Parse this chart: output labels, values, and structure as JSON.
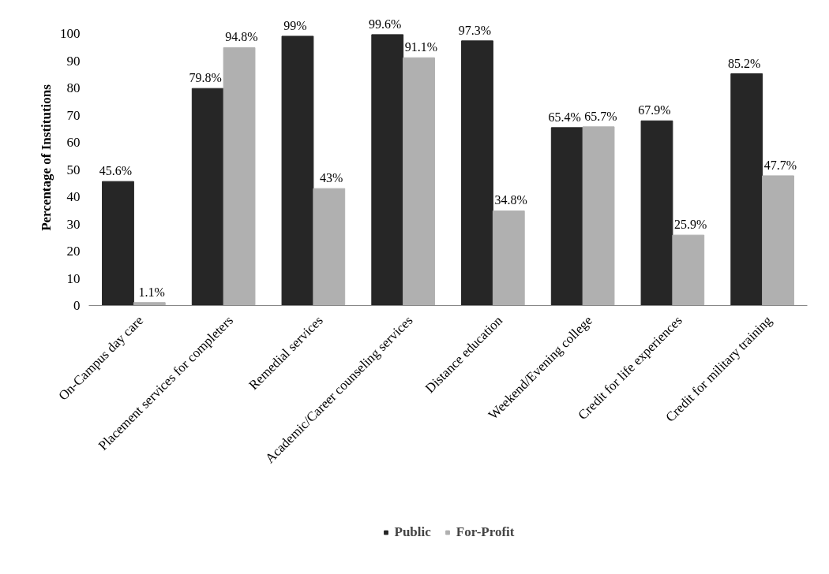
{
  "chart_data": {
    "type": "bar",
    "ylabel": "Percentage of Institutions",
    "categories": [
      "On-Campus day care",
      "Placement services for completers",
      "Remedial services",
      "Academic/Career counseling services",
      "Distance education",
      "Weekend/Evening college",
      "Credit for life experiences",
      "Credit for military training"
    ],
    "series": [
      {
        "name": "Public",
        "color": "#262626",
        "values": [
          45.6,
          79.8,
          99,
          99.6,
          97.3,
          65.4,
          67.9,
          85.2
        ],
        "value_labels": [
          "45.6%",
          "79.8%",
          "99%",
          "99.6%",
          "97.3%",
          "65.4%",
          "67.9%",
          "85.2%"
        ]
      },
      {
        "name": "For-Profit",
        "color": "#b0b0b0",
        "values": [
          1.1,
          94.8,
          43,
          91.1,
          34.8,
          65.7,
          25.9,
          47.7
        ],
        "value_labels": [
          "1.1%",
          "94.8%",
          "43%",
          "91.1%",
          "34.8%",
          "65.7%",
          "25.9%",
          "47.7%"
        ]
      }
    ],
    "ylim": [
      0,
      100
    ],
    "yticks": [
      0,
      10,
      20,
      30,
      40,
      50,
      60,
      70,
      80,
      90,
      100
    ],
    "grid": false,
    "legend": "bottom"
  }
}
